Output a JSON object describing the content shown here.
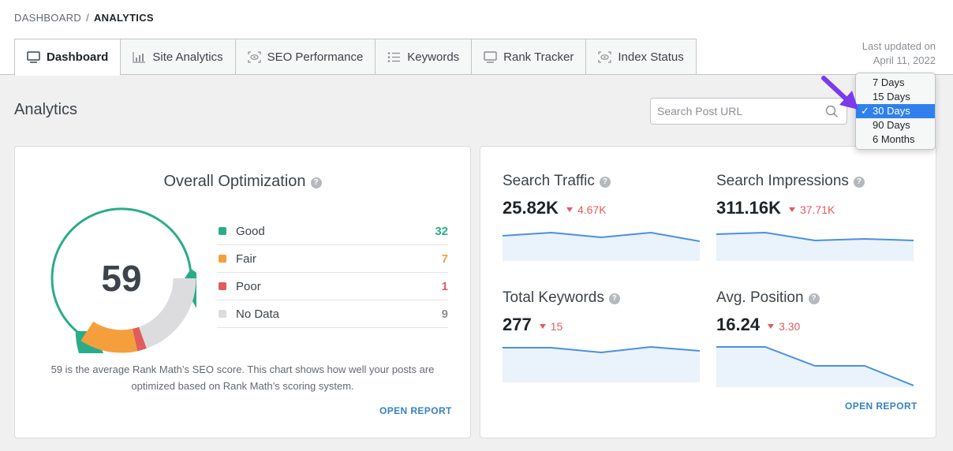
{
  "breadcrumb": {
    "parent": "DASHBOARD",
    "separator": "/",
    "current": "ANALYTICS"
  },
  "tabs": [
    {
      "label": "Dashboard",
      "icon": "monitor-icon",
      "active": true
    },
    {
      "label": "Site Analytics",
      "icon": "bar-chart-icon",
      "active": false
    },
    {
      "label": "SEO Performance",
      "icon": "eye-scan-icon",
      "active": false
    },
    {
      "label": "Keywords",
      "icon": "list-icon",
      "active": false
    },
    {
      "label": "Rank Tracker",
      "icon": "monitor-icon",
      "active": false
    },
    {
      "label": "Index Status",
      "icon": "eye-scan-icon",
      "active": false
    }
  ],
  "last_updated": {
    "label": "Last updated on",
    "date": "April 11, 2022"
  },
  "page_title": "Analytics",
  "search": {
    "placeholder": "Search Post URL",
    "icon": "search-icon"
  },
  "range_dropdown": {
    "options": [
      "7 Days",
      "15 Days",
      "30 Days",
      "90 Days",
      "6 Months"
    ],
    "selected": "30 Days"
  },
  "optimization": {
    "title": "Overall Optimization",
    "score": "59",
    "legend": [
      {
        "label": "Good",
        "value": "32",
        "color": "#2aac8a"
      },
      {
        "label": "Fair",
        "value": "7",
        "color": "#f59f3c"
      },
      {
        "label": "Poor",
        "value": "1",
        "color": "#e05d5d"
      },
      {
        "label": "No Data",
        "value": "9",
        "color": "#dcdcde"
      }
    ],
    "description": "59 is the average Rank Math’s SEO score. This chart shows how well your posts are optimized based on Rank Math’s scoring system.",
    "open_report": "OPEN REPORT"
  },
  "metrics": {
    "search_traffic": {
      "title": "Search Traffic",
      "value": "25.82K",
      "delta": "4.67K"
    },
    "search_impressions": {
      "title": "Search Impressions",
      "value": "311.16K",
      "delta": "37.71K"
    },
    "total_keywords": {
      "title": "Total Keywords",
      "value": "277",
      "delta": "15"
    },
    "avg_position": {
      "title": "Avg. Position",
      "value": "16.24",
      "delta": "3.30"
    },
    "open_report": "OPEN REPORT"
  },
  "colors": {
    "accent": "#3582c4",
    "negative": "#e05d5d",
    "line": "#4a90e2"
  }
}
